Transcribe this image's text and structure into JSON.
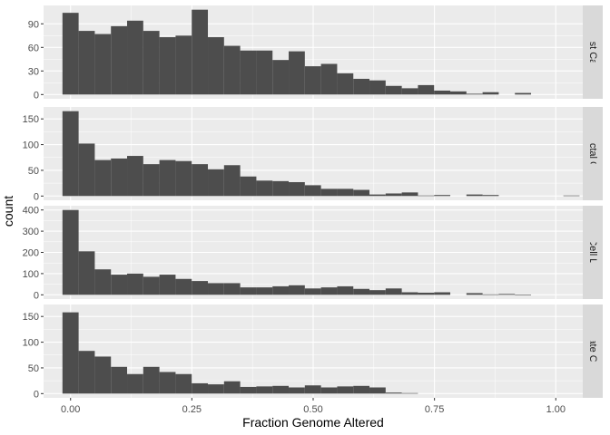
{
  "chart_data": {
    "type": "bar",
    "subtype": "faceted-histogram",
    "xlabel": "Fraction Genome Altered",
    "ylabel": "count",
    "xlim": [
      -0.0556,
      1.0556
    ],
    "bin_width": 0.0333,
    "bin_start": -0.01667,
    "x_ticks": [
      0,
      0.25,
      0.5,
      0.75,
      1
    ],
    "x_tick_labels": [
      "0.00",
      "0.25",
      "0.50",
      "0.75",
      "1.00"
    ],
    "grid": true,
    "colors": {
      "panel_bg": "#EBEBEB",
      "grid_major": "#FFFFFF",
      "bar_fill": "#4D4D4D",
      "strip_bg": "#D9D9D9"
    },
    "panels": [
      {
        "strip": "Breast Cancer",
        "ylim": [
          -5.4,
          113.4
        ],
        "y_ticks": [
          0,
          30,
          60,
          90
        ],
        "values": [
          104,
          81,
          77,
          87,
          94,
          81,
          73,
          75,
          108,
          73,
          62,
          56,
          56,
          44,
          55,
          36,
          39,
          27,
          20,
          18,
          11,
          8,
          12,
          5,
          4,
          1,
          3,
          0,
          2,
          0,
          0,
          0,
          0
        ]
      },
      {
        "strip": "Colorectal Cancer",
        "ylim": [
          -8.25,
          173.25
        ],
        "y_ticks": [
          0,
          50,
          100,
          150
        ],
        "values": [
          165,
          102,
          70,
          73,
          78,
          62,
          70,
          68,
          62,
          52,
          60,
          38,
          30,
          29,
          27,
          21,
          14,
          14,
          12,
          3,
          5,
          7,
          1,
          2,
          0,
          3,
          2,
          0,
          0,
          0,
          0,
          1,
          0
        ]
      },
      {
        "strip": "Non-Small Cell Lung Cancer",
        "ylim": [
          -20,
          420
        ],
        "y_ticks": [
          0,
          100,
          200,
          300,
          400
        ],
        "values": [
          400,
          205,
          120,
          95,
          100,
          85,
          95,
          75,
          65,
          55,
          55,
          35,
          35,
          40,
          45,
          30,
          35,
          40,
          28,
          22,
          30,
          12,
          10,
          12,
          0,
          8,
          2,
          4,
          1,
          0,
          0,
          0,
          0
        ]
      },
      {
        "strip": "Prostate Cancer",
        "ylim": [
          -8.25,
          173.25
        ],
        "y_ticks": [
          0,
          50,
          100,
          150
        ],
        "values": [
          158,
          83,
          72,
          52,
          38,
          52,
          42,
          38,
          20,
          18,
          24,
          13,
          14,
          15,
          12,
          16,
          12,
          14,
          15,
          12,
          2,
          1,
          0,
          0,
          0,
          0,
          0,
          0,
          0,
          0,
          0,
          0,
          0
        ]
      }
    ]
  }
}
